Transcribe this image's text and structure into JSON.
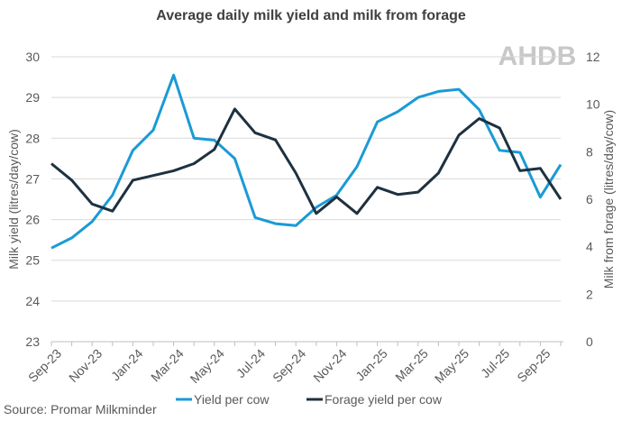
{
  "chart_data": {
    "type": "line",
    "title": "Average daily milk yield and milk from forage",
    "logo": "AHDB",
    "source": "Source: Promar Milkminder",
    "ylabel": "Milk yield (litres/day/cow)",
    "y2label": "Milk from forage (litres/day/cow)",
    "categories": [
      "Sep-23",
      null,
      "Nov-23",
      null,
      "Jan-24",
      null,
      "Mar-24",
      null,
      "May-24",
      null,
      "Jul-24",
      null,
      "Sep-24",
      null,
      "Nov-24",
      null,
      "Jan-25",
      null,
      "Mar-25",
      null,
      "May-25",
      null,
      "Jul-25",
      null,
      "Sep-25",
      null
    ],
    "series": [
      {
        "name": "Yield per cow",
        "color": "#1a9ad6",
        "values": [
          25.3,
          25.55,
          25.95,
          26.6,
          27.7,
          28.2,
          29.55,
          28.0,
          27.95,
          27.5,
          26.05,
          25.9,
          25.85,
          26.3,
          26.6,
          27.3,
          28.4,
          28.65,
          29.0,
          29.15,
          29.2,
          28.7,
          27.7,
          27.65,
          26.55,
          27.35
        ]
      },
      {
        "name": "Forage yield per cow",
        "color": "#1d3140",
        "axis": "y2",
        "values": [
          7.5,
          6.8,
          5.8,
          5.5,
          6.8,
          7.0,
          7.2,
          7.5,
          8.1,
          9.8,
          8.8,
          8.5,
          7.1,
          5.4,
          6.1,
          5.4,
          6.5,
          6.2,
          6.3,
          7.1,
          8.7,
          9.4,
          9.0,
          7.2,
          7.3,
          6.0
        ]
      }
    ],
    "ylim": [
      23,
      30
    ],
    "yticks": [
      23,
      24,
      25,
      26,
      27,
      28,
      29,
      30
    ],
    "y2lim": [
      0,
      12
    ],
    "y2ticks": [
      0,
      2,
      4,
      6,
      8,
      10,
      12
    ],
    "grid": true
  }
}
